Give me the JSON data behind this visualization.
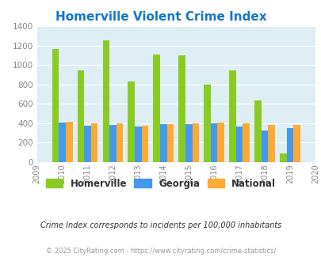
{
  "title": "Homerville Violent Crime Index",
  "years": [
    "2009",
    "2010",
    "2011",
    "2012",
    "2013",
    "2014",
    "2015",
    "2016",
    "2017",
    "2018",
    "2019",
    "2020"
  ],
  "homerville": [
    null,
    1160,
    940,
    1250,
    830,
    1105,
    1100,
    800,
    945,
    630,
    90,
    null
  ],
  "georgia": [
    null,
    405,
    370,
    380,
    360,
    385,
    385,
    400,
    360,
    320,
    345,
    null
  ],
  "national": [
    null,
    410,
    395,
    395,
    370,
    385,
    395,
    405,
    400,
    380,
    380,
    null
  ],
  "homerville_color": "#88cc22",
  "georgia_color": "#4499ee",
  "national_color": "#ffaa33",
  "bg_color": "#ddeef5",
  "ylim": [
    0,
    1400
  ],
  "yticks": [
    0,
    200,
    400,
    600,
    800,
    1000,
    1200,
    1400
  ],
  "subtitle": "Crime Index corresponds to incidents per 100,000 inhabitants",
  "footer": "© 2025 CityRating.com - https://www.cityrating.com/crime-statistics/",
  "legend_labels": [
    "Homerville",
    "Georgia",
    "National"
  ],
  "title_color": "#1177cc",
  "subtitle_color": "#333333",
  "footer_color": "#999999"
}
